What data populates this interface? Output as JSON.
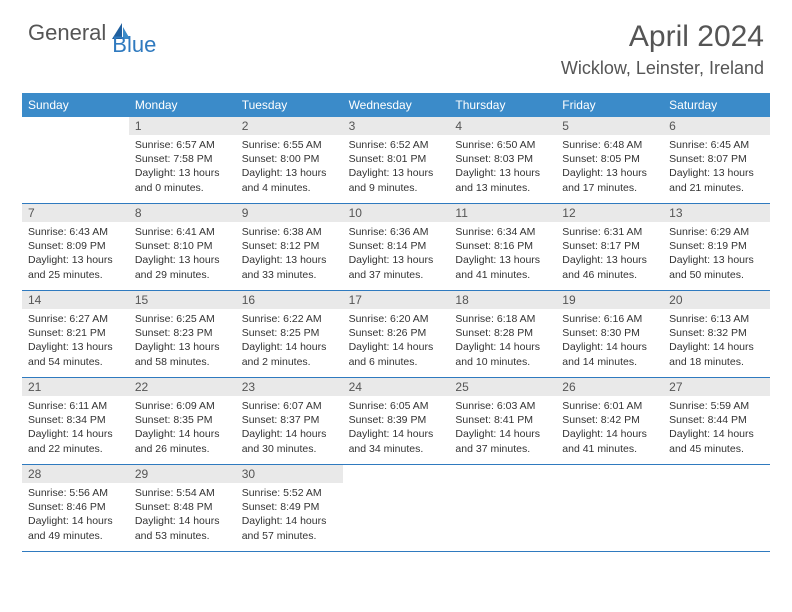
{
  "logo": {
    "part1": "General",
    "part2": "Blue"
  },
  "title": "April 2024",
  "location": "Wicklow, Leinster, Ireland",
  "colors": {
    "header_bg": "#3b8bc9",
    "header_text": "#ffffff",
    "daynum_bg": "#e9e9e9",
    "border": "#2f7abf",
    "text": "#333333",
    "title_text": "#555555"
  },
  "day_headers": [
    "Sunday",
    "Monday",
    "Tuesday",
    "Wednesday",
    "Thursday",
    "Friday",
    "Saturday"
  ],
  "weeks": [
    [
      null,
      {
        "n": "1",
        "sr": "Sunrise: 6:57 AM",
        "ss": "Sunset: 7:58 PM",
        "d1": "Daylight: 13 hours",
        "d2": "and 0 minutes."
      },
      {
        "n": "2",
        "sr": "Sunrise: 6:55 AM",
        "ss": "Sunset: 8:00 PM",
        "d1": "Daylight: 13 hours",
        "d2": "and 4 minutes."
      },
      {
        "n": "3",
        "sr": "Sunrise: 6:52 AM",
        "ss": "Sunset: 8:01 PM",
        "d1": "Daylight: 13 hours",
        "d2": "and 9 minutes."
      },
      {
        "n": "4",
        "sr": "Sunrise: 6:50 AM",
        "ss": "Sunset: 8:03 PM",
        "d1": "Daylight: 13 hours",
        "d2": "and 13 minutes."
      },
      {
        "n": "5",
        "sr": "Sunrise: 6:48 AM",
        "ss": "Sunset: 8:05 PM",
        "d1": "Daylight: 13 hours",
        "d2": "and 17 minutes."
      },
      {
        "n": "6",
        "sr": "Sunrise: 6:45 AM",
        "ss": "Sunset: 8:07 PM",
        "d1": "Daylight: 13 hours",
        "d2": "and 21 minutes."
      }
    ],
    [
      {
        "n": "7",
        "sr": "Sunrise: 6:43 AM",
        "ss": "Sunset: 8:09 PM",
        "d1": "Daylight: 13 hours",
        "d2": "and 25 minutes."
      },
      {
        "n": "8",
        "sr": "Sunrise: 6:41 AM",
        "ss": "Sunset: 8:10 PM",
        "d1": "Daylight: 13 hours",
        "d2": "and 29 minutes."
      },
      {
        "n": "9",
        "sr": "Sunrise: 6:38 AM",
        "ss": "Sunset: 8:12 PM",
        "d1": "Daylight: 13 hours",
        "d2": "and 33 minutes."
      },
      {
        "n": "10",
        "sr": "Sunrise: 6:36 AM",
        "ss": "Sunset: 8:14 PM",
        "d1": "Daylight: 13 hours",
        "d2": "and 37 minutes."
      },
      {
        "n": "11",
        "sr": "Sunrise: 6:34 AM",
        "ss": "Sunset: 8:16 PM",
        "d1": "Daylight: 13 hours",
        "d2": "and 41 minutes."
      },
      {
        "n": "12",
        "sr": "Sunrise: 6:31 AM",
        "ss": "Sunset: 8:17 PM",
        "d1": "Daylight: 13 hours",
        "d2": "and 46 minutes."
      },
      {
        "n": "13",
        "sr": "Sunrise: 6:29 AM",
        "ss": "Sunset: 8:19 PM",
        "d1": "Daylight: 13 hours",
        "d2": "and 50 minutes."
      }
    ],
    [
      {
        "n": "14",
        "sr": "Sunrise: 6:27 AM",
        "ss": "Sunset: 8:21 PM",
        "d1": "Daylight: 13 hours",
        "d2": "and 54 minutes."
      },
      {
        "n": "15",
        "sr": "Sunrise: 6:25 AM",
        "ss": "Sunset: 8:23 PM",
        "d1": "Daylight: 13 hours",
        "d2": "and 58 minutes."
      },
      {
        "n": "16",
        "sr": "Sunrise: 6:22 AM",
        "ss": "Sunset: 8:25 PM",
        "d1": "Daylight: 14 hours",
        "d2": "and 2 minutes."
      },
      {
        "n": "17",
        "sr": "Sunrise: 6:20 AM",
        "ss": "Sunset: 8:26 PM",
        "d1": "Daylight: 14 hours",
        "d2": "and 6 minutes."
      },
      {
        "n": "18",
        "sr": "Sunrise: 6:18 AM",
        "ss": "Sunset: 8:28 PM",
        "d1": "Daylight: 14 hours",
        "d2": "and 10 minutes."
      },
      {
        "n": "19",
        "sr": "Sunrise: 6:16 AM",
        "ss": "Sunset: 8:30 PM",
        "d1": "Daylight: 14 hours",
        "d2": "and 14 minutes."
      },
      {
        "n": "20",
        "sr": "Sunrise: 6:13 AM",
        "ss": "Sunset: 8:32 PM",
        "d1": "Daylight: 14 hours",
        "d2": "and 18 minutes."
      }
    ],
    [
      {
        "n": "21",
        "sr": "Sunrise: 6:11 AM",
        "ss": "Sunset: 8:34 PM",
        "d1": "Daylight: 14 hours",
        "d2": "and 22 minutes."
      },
      {
        "n": "22",
        "sr": "Sunrise: 6:09 AM",
        "ss": "Sunset: 8:35 PM",
        "d1": "Daylight: 14 hours",
        "d2": "and 26 minutes."
      },
      {
        "n": "23",
        "sr": "Sunrise: 6:07 AM",
        "ss": "Sunset: 8:37 PM",
        "d1": "Daylight: 14 hours",
        "d2": "and 30 minutes."
      },
      {
        "n": "24",
        "sr": "Sunrise: 6:05 AM",
        "ss": "Sunset: 8:39 PM",
        "d1": "Daylight: 14 hours",
        "d2": "and 34 minutes."
      },
      {
        "n": "25",
        "sr": "Sunrise: 6:03 AM",
        "ss": "Sunset: 8:41 PM",
        "d1": "Daylight: 14 hours",
        "d2": "and 37 minutes."
      },
      {
        "n": "26",
        "sr": "Sunrise: 6:01 AM",
        "ss": "Sunset: 8:42 PM",
        "d1": "Daylight: 14 hours",
        "d2": "and 41 minutes."
      },
      {
        "n": "27",
        "sr": "Sunrise: 5:59 AM",
        "ss": "Sunset: 8:44 PM",
        "d1": "Daylight: 14 hours",
        "d2": "and 45 minutes."
      }
    ],
    [
      {
        "n": "28",
        "sr": "Sunrise: 5:56 AM",
        "ss": "Sunset: 8:46 PM",
        "d1": "Daylight: 14 hours",
        "d2": "and 49 minutes."
      },
      {
        "n": "29",
        "sr": "Sunrise: 5:54 AM",
        "ss": "Sunset: 8:48 PM",
        "d1": "Daylight: 14 hours",
        "d2": "and 53 minutes."
      },
      {
        "n": "30",
        "sr": "Sunrise: 5:52 AM",
        "ss": "Sunset: 8:49 PM",
        "d1": "Daylight: 14 hours",
        "d2": "and 57 minutes."
      },
      null,
      null,
      null,
      null
    ]
  ]
}
